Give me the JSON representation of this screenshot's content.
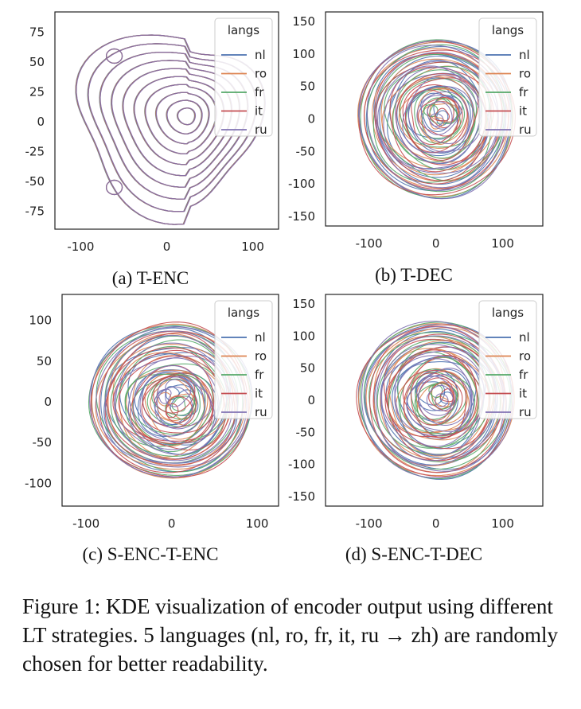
{
  "caption": "Figure 1: KDE visualization of encoder output using different LT strategies. 5 languages (nl, ro, fr, it, ru → zh) are randomly chosen for better readability.",
  "series_colors": {
    "nl": "#4c72b0",
    "ro": "#dd8452",
    "fr": "#55a868",
    "it": "#c44e52",
    "ru": "#8172b3"
  },
  "chart_data": [
    {
      "type": "kde-contour",
      "subcaption": "(a) T-ENC",
      "legend_title": "langs",
      "legend_entries": [
        "nl",
        "ro",
        "fr",
        "it",
        "ru"
      ],
      "legend_position": "top-right",
      "grid": false,
      "xlim": [
        -130,
        130
      ],
      "ylim": [
        -90,
        92
      ],
      "x_ticks": [
        -100,
        0,
        100
      ],
      "y_ticks": [
        75,
        50,
        25,
        0,
        -25,
        -50,
        -75
      ],
      "density_center": [
        25,
        5
      ],
      "contour_levels": 10,
      "outer_extent": {
        "x": [
          -100,
          102
        ],
        "y": [
          -68,
          70
        ]
      },
      "small_modes": [
        {
          "x": -61,
          "y": 55
        },
        {
          "x": -61,
          "y": -55
        }
      ]
    },
    {
      "type": "kde-contour",
      "subcaption": "(b) T-DEC",
      "legend_title": "langs",
      "legend_entries": [
        "nl",
        "ro",
        "fr",
        "it",
        "ru"
      ],
      "legend_position": "top-right",
      "grid": false,
      "xlim": [
        -165,
        160
      ],
      "ylim": [
        -165,
        165
      ],
      "x_ticks": [
        -100,
        0,
        100
      ],
      "y_ticks": [
        150,
        100,
        50,
        0,
        -50,
        -100,
        -150
      ],
      "density_center": [
        5,
        5
      ],
      "contour_levels": 12,
      "outer_extent": {
        "x": [
          -115,
          115
        ],
        "y": [
          -120,
          120
        ]
      }
    },
    {
      "type": "kde-contour",
      "subcaption": "(c) S-ENC-T-ENC",
      "legend_title": "langs",
      "legend_entries": [
        "nl",
        "ro",
        "fr",
        "it",
        "ru"
      ],
      "legend_position": "top-right",
      "grid": false,
      "xlim": [
        -128,
        125
      ],
      "ylim": [
        -128,
        132
      ],
      "x_ticks": [
        -100,
        0,
        100
      ],
      "y_ticks": [
        100,
        50,
        0,
        -50,
        -100
      ],
      "density_center": [
        5,
        0
      ],
      "contour_levels": 12,
      "outer_extent": {
        "x": [
          -95,
          92
        ],
        "y": [
          -92,
          95
        ]
      }
    },
    {
      "type": "kde-contour",
      "subcaption": "(d) S-ENC-T-DEC",
      "legend_title": "langs",
      "legend_entries": [
        "nl",
        "ro",
        "fr",
        "it",
        "ru"
      ],
      "legend_position": "top-right",
      "grid": false,
      "xlim": [
        -165,
        160
      ],
      "ylim": [
        -165,
        165
      ],
      "x_ticks": [
        -100,
        0,
        100
      ],
      "y_ticks": [
        150,
        100,
        50,
        0,
        -50,
        -100,
        -150
      ],
      "density_center": [
        5,
        5
      ],
      "contour_levels": 12,
      "outer_extent": {
        "x": [
          -115,
          115
        ],
        "y": [
          -120,
          120
        ]
      }
    }
  ]
}
